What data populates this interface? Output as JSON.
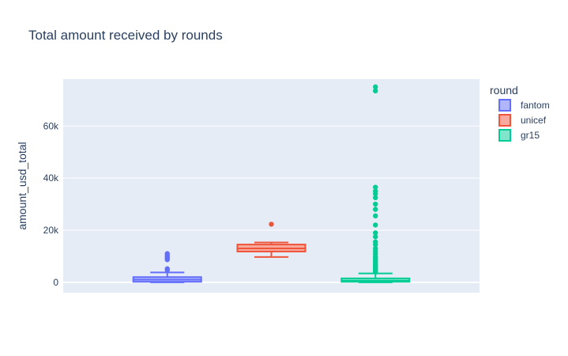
{
  "chart_data": {
    "type": "box",
    "title": "Total amount received by rounds",
    "xlabel": "",
    "ylabel": "amount_usd_total",
    "ylim": [
      -4000,
      78000
    ],
    "yticks": [
      0,
      20000,
      40000,
      60000
    ],
    "ytick_labels": [
      "0",
      "20k",
      "40k",
      "60k"
    ],
    "grid": true,
    "legend": {
      "title": "round",
      "placement": "top-right"
    },
    "series": [
      {
        "name": "fantom",
        "color": "#636efa",
        "fill": "#b1b6fc",
        "whisker_low": 0,
        "q1": 200,
        "median": 1000,
        "q3": 2000,
        "whisker_high": 3800,
        "outliers": [
          4700,
          5200,
          8700,
          9300,
          9800,
          10300,
          11000
        ]
      },
      {
        "name": "unicef",
        "color": "#ef553b",
        "fill": "#f7aa9d",
        "whisker_low": 9700,
        "q1": 11800,
        "median": 13000,
        "q3": 14500,
        "whisker_high": 15300,
        "outliers": [
          22300
        ]
      },
      {
        "name": "gr15",
        "color": "#00cc96",
        "fill": "#80e5cb",
        "whisker_low": 0,
        "q1": 200,
        "median": 600,
        "q3": 1500,
        "whisker_high": 3400,
        "outliers": [
          3900,
          4300,
          4700,
          5100,
          5500,
          5900,
          6400,
          6900,
          7400,
          8000,
          8600,
          9300,
          10000,
          11000,
          12000,
          13000,
          14500,
          15500,
          17500,
          19000,
          22000,
          25500,
          28000,
          30000,
          32500,
          34000,
          35000,
          36500,
          73500,
          75000
        ]
      }
    ]
  }
}
